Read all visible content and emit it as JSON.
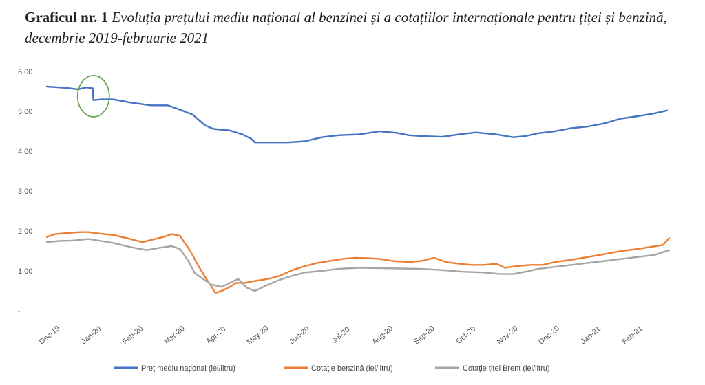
{
  "heading": {
    "lead": "Graficul nr. 1",
    "main": "Evoluția prețului mediu național al benzinei și a cotațiilor internaționale pentru țiței și benzină, decembrie 2019-februarie 2021"
  },
  "chart_data": {
    "type": "line",
    "title": "Graficul nr. 1 Evoluția prețului mediu național al benzinei și a cotațiilor internaționale pentru țiței și benzină, decembrie 2019-februarie 2021",
    "xlabel": "",
    "ylabel": "",
    "ylim": [
      0,
      6
    ],
    "y_ticks": [
      "6.00",
      "5.00",
      "4.00",
      "3.00",
      "2.00",
      "1.00",
      "-"
    ],
    "categories": [
      "Dec-19",
      "Jan-20",
      "Feb-20",
      "Mar-20",
      "Apr-20",
      "May-20",
      "Jun-20",
      "Jul-20",
      "Aug-20",
      "Sep-20",
      "Oct-20",
      "Nov-20",
      "Dec-20",
      "Jan-21",
      "Feb-21"
    ],
    "grid": false,
    "legend": "bottom",
    "annotation": "green circle around the early-January 2020 drop in the national price",
    "series": [
      {
        "name": "Preț mediu național (lei/litru)",
        "color": "#4472c4",
        "points": [
          [
            0,
            5.62
          ],
          [
            0.3,
            5.6
          ],
          [
            0.55,
            5.58
          ],
          [
            0.75,
            5.55
          ],
          [
            0.95,
            5.6
          ],
          [
            1.1,
            5.58
          ],
          [
            1.12,
            5.28
          ],
          [
            1.3,
            5.3
          ],
          [
            1.6,
            5.3
          ],
          [
            2.0,
            5.22
          ],
          [
            2.5,
            5.15
          ],
          [
            2.9,
            5.15
          ],
          [
            3.1,
            5.08
          ],
          [
            3.5,
            4.92
          ],
          [
            3.8,
            4.65
          ],
          [
            4.0,
            4.56
          ],
          [
            4.4,
            4.52
          ],
          [
            4.7,
            4.42
          ],
          [
            4.9,
            4.32
          ],
          [
            5.0,
            4.22
          ],
          [
            5.4,
            4.22
          ],
          [
            5.8,
            4.22
          ],
          [
            6.2,
            4.25
          ],
          [
            6.6,
            4.35
          ],
          [
            7.0,
            4.4
          ],
          [
            7.5,
            4.42
          ],
          [
            8.0,
            4.5
          ],
          [
            8.4,
            4.46
          ],
          [
            8.7,
            4.4
          ],
          [
            9.0,
            4.38
          ],
          [
            9.5,
            4.36
          ],
          [
            9.9,
            4.42
          ],
          [
            10.3,
            4.47
          ],
          [
            10.8,
            4.42
          ],
          [
            11.2,
            4.35
          ],
          [
            11.5,
            4.38
          ],
          [
            11.8,
            4.45
          ],
          [
            12.2,
            4.5
          ],
          [
            12.6,
            4.58
          ],
          [
            13.0,
            4.62
          ],
          [
            13.4,
            4.7
          ],
          [
            13.8,
            4.82
          ],
          [
            14.2,
            4.88
          ],
          [
            14.6,
            4.95
          ],
          [
            14.9,
            5.02
          ]
        ]
      },
      {
        "name": "Cotație benzină (lei/litru)",
        "color": "#ed7d31",
        "points": [
          [
            0,
            1.85
          ],
          [
            0.2,
            1.92
          ],
          [
            0.5,
            1.95
          ],
          [
            0.8,
            1.97
          ],
          [
            1.0,
            1.97
          ],
          [
            1.3,
            1.93
          ],
          [
            1.6,
            1.9
          ],
          [
            2.0,
            1.8
          ],
          [
            2.3,
            1.72
          ],
          [
            2.6,
            1.8
          ],
          [
            2.8,
            1.85
          ],
          [
            3.0,
            1.92
          ],
          [
            3.2,
            1.88
          ],
          [
            3.3,
            1.72
          ],
          [
            3.45,
            1.5
          ],
          [
            3.6,
            1.2
          ],
          [
            3.8,
            0.85
          ],
          [
            3.95,
            0.62
          ],
          [
            4.05,
            0.45
          ],
          [
            4.2,
            0.5
          ],
          [
            4.4,
            0.6
          ],
          [
            4.55,
            0.7
          ],
          [
            4.75,
            0.7
          ],
          [
            5.0,
            0.75
          ],
          [
            5.2,
            0.78
          ],
          [
            5.4,
            0.82
          ],
          [
            5.6,
            0.88
          ],
          [
            5.9,
            1.02
          ],
          [
            6.2,
            1.12
          ],
          [
            6.5,
            1.2
          ],
          [
            6.8,
            1.25
          ],
          [
            7.1,
            1.3
          ],
          [
            7.4,
            1.33
          ],
          [
            7.7,
            1.32
          ],
          [
            8.0,
            1.3
          ],
          [
            8.3,
            1.25
          ],
          [
            8.7,
            1.22
          ],
          [
            9.0,
            1.25
          ],
          [
            9.3,
            1.33
          ],
          [
            9.6,
            1.22
          ],
          [
            9.9,
            1.18
          ],
          [
            10.2,
            1.15
          ],
          [
            10.5,
            1.15
          ],
          [
            10.8,
            1.18
          ],
          [
            11.0,
            1.08
          ],
          [
            11.3,
            1.12
          ],
          [
            11.6,
            1.15
          ],
          [
            11.9,
            1.15
          ],
          [
            12.2,
            1.22
          ],
          [
            12.6,
            1.28
          ],
          [
            13.0,
            1.35
          ],
          [
            13.4,
            1.42
          ],
          [
            13.8,
            1.5
          ],
          [
            14.2,
            1.55
          ],
          [
            14.5,
            1.6
          ],
          [
            14.8,
            1.65
          ],
          [
            14.95,
            1.82
          ]
        ]
      },
      {
        "name": "Cotație țiței Brent (lei/litru)",
        "color": "#a5a5a5",
        "points": [
          [
            0,
            1.72
          ],
          [
            0.3,
            1.75
          ],
          [
            0.6,
            1.76
          ],
          [
            1.0,
            1.8
          ],
          [
            1.3,
            1.75
          ],
          [
            1.6,
            1.7
          ],
          [
            2.0,
            1.6
          ],
          [
            2.4,
            1.52
          ],
          [
            2.7,
            1.58
          ],
          [
            3.0,
            1.62
          ],
          [
            3.2,
            1.55
          ],
          [
            3.4,
            1.25
          ],
          [
            3.55,
            0.95
          ],
          [
            3.75,
            0.8
          ],
          [
            3.95,
            0.66
          ],
          [
            4.2,
            0.6
          ],
          [
            4.4,
            0.7
          ],
          [
            4.6,
            0.8
          ],
          [
            4.8,
            0.58
          ],
          [
            5.0,
            0.5
          ],
          [
            5.3,
            0.65
          ],
          [
            5.6,
            0.78
          ],
          [
            5.9,
            0.88
          ],
          [
            6.2,
            0.96
          ],
          [
            6.6,
            1.0
          ],
          [
            7.0,
            1.05
          ],
          [
            7.5,
            1.08
          ],
          [
            8.0,
            1.07
          ],
          [
            8.5,
            1.06
          ],
          [
            9.0,
            1.05
          ],
          [
            9.5,
            1.02
          ],
          [
            10.0,
            0.98
          ],
          [
            10.5,
            0.96
          ],
          [
            10.9,
            0.92
          ],
          [
            11.2,
            0.92
          ],
          [
            11.5,
            0.98
          ],
          [
            11.8,
            1.05
          ],
          [
            12.2,
            1.1
          ],
          [
            12.6,
            1.15
          ],
          [
            13.0,
            1.2
          ],
          [
            13.4,
            1.25
          ],
          [
            13.8,
            1.3
          ],
          [
            14.2,
            1.35
          ],
          [
            14.6,
            1.4
          ],
          [
            14.95,
            1.52
          ]
        ]
      }
    ]
  }
}
